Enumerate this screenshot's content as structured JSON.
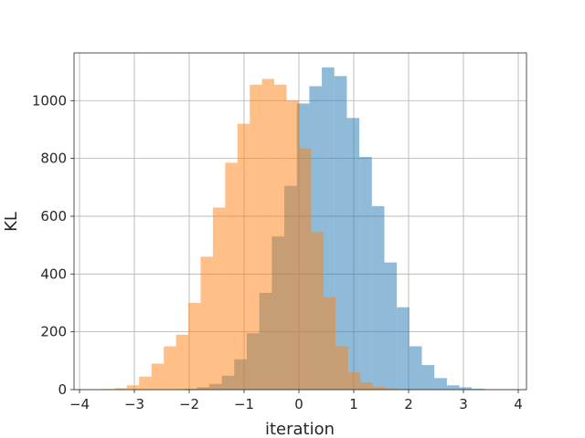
{
  "chart_data": {
    "type": "bar",
    "title": "",
    "xlabel": "iteration",
    "ylabel": "KL",
    "xlim": [
      -4.1,
      4.15
    ],
    "ylim": [
      0,
      1165
    ],
    "grid": true,
    "legend": "none",
    "x_ticks": [
      -4,
      -3,
      -2,
      -1,
      0,
      1,
      2,
      3,
      4
    ],
    "x_tick_labels": [
      "−4",
      "−3",
      "−2",
      "−1",
      "0",
      "1",
      "2",
      "3",
      "4"
    ],
    "y_ticks": [
      0,
      200,
      400,
      600,
      800,
      1000
    ],
    "y_tick_labels": [
      "0",
      "200",
      "400",
      "600",
      "800",
      "1000"
    ],
    "series": [
      {
        "color": "#1f77b4",
        "alpha": 0.5,
        "bin_edges": [
          -2.09,
          -1.862,
          -1.634,
          -1.406,
          -1.178,
          -0.95,
          -0.722,
          -0.494,
          -0.266,
          -0.038,
          0.19,
          0.418,
          0.646,
          0.874,
          1.102,
          1.33,
          1.558,
          1.786,
          2.014,
          2.242,
          2.47,
          2.698,
          2.926,
          3.154,
          3.382
        ],
        "counts": [
          3,
          8,
          20,
          48,
          105,
          195,
          335,
          530,
          705,
          990,
          1050,
          1115,
          1085,
          940,
          805,
          635,
          440,
          285,
          150,
          85,
          40,
          15,
          8,
          3
        ]
      },
      {
        "color": "#ff7f0e",
        "alpha": 0.5,
        "bin_edges": [
          -3.584,
          -3.36,
          -3.136,
          -2.912,
          -2.688,
          -2.464,
          -2.24,
          -2.016,
          -1.792,
          -1.568,
          -1.344,
          -1.12,
          -0.896,
          -0.672,
          -0.448,
          -0.224,
          0.0,
          0.224,
          0.448,
          0.672,
          0.896,
          1.12,
          1.344,
          1.568,
          1.792
        ],
        "counts": [
          2,
          5,
          15,
          45,
          90,
          150,
          190,
          300,
          460,
          630,
          785,
          920,
          1055,
          1075,
          1055,
          1000,
          835,
          545,
          320,
          150,
          60,
          25,
          10,
          5
        ]
      }
    ]
  }
}
